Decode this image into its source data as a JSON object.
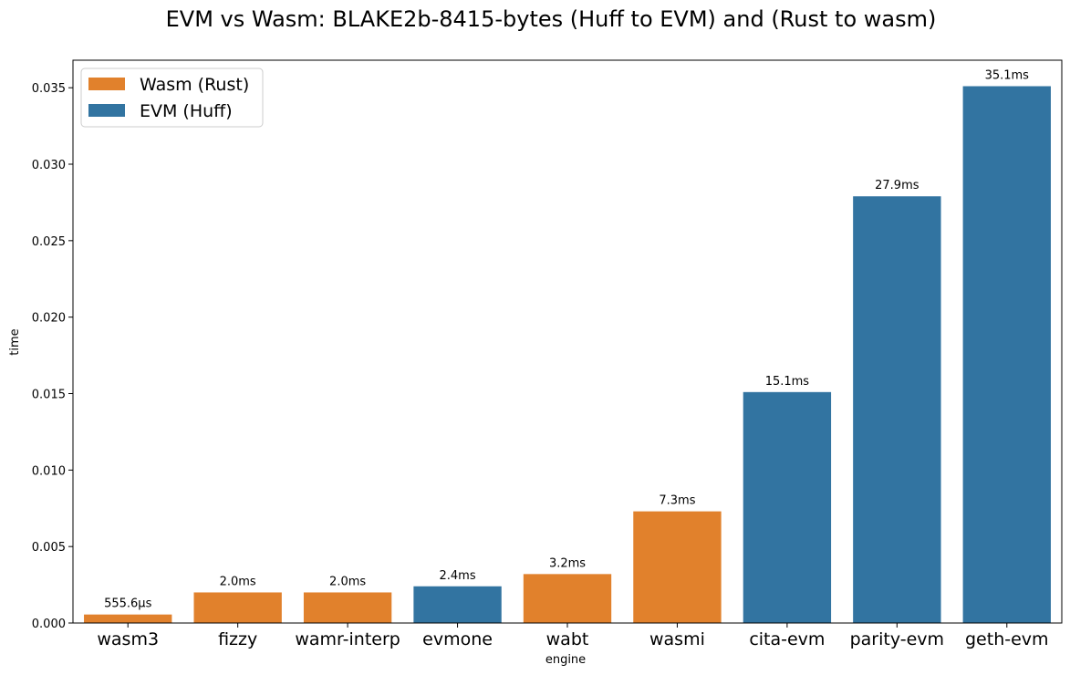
{
  "chart_data": {
    "type": "bar",
    "title": "EVM vs Wasm: BLAKE2b-8415-bytes (Huff to EVM) and (Rust to wasm)",
    "xlabel": "engine",
    "ylabel": "time",
    "ylim": [
      0,
      0.0368
    ],
    "yticks": [
      0.0,
      0.005,
      0.01,
      0.015,
      0.02,
      0.025,
      0.03,
      0.035
    ],
    "ytick_labels": [
      "0.000",
      "0.005",
      "0.010",
      "0.015",
      "0.020",
      "0.025",
      "0.030",
      "0.035"
    ],
    "categories": [
      "wasm3",
      "fizzy",
      "wamr-interp",
      "evmone",
      "wabt",
      "wasmi",
      "cita-evm",
      "parity-evm",
      "geth-evm"
    ],
    "values": [
      0.0005556,
      0.002,
      0.002,
      0.0024,
      0.0032,
      0.0073,
      0.0151,
      0.0279,
      0.0351
    ],
    "value_labels": [
      "555.6µs",
      "2.0ms",
      "2.0ms",
      "2.4ms",
      "3.2ms",
      "7.3ms",
      "15.1ms",
      "27.9ms",
      "35.1ms"
    ],
    "groups": [
      "Wasm (Rust)",
      "Wasm (Rust)",
      "Wasm (Rust)",
      "EVM (Huff)",
      "Wasm (Rust)",
      "Wasm (Rust)",
      "EVM (Huff)",
      "EVM (Huff)",
      "EVM (Huff)"
    ],
    "legend": {
      "placement": "top-left",
      "entries": [
        {
          "name": "Wasm (Rust)",
          "color": "#e1812c"
        },
        {
          "name": "EVM (Huff)",
          "color": "#3274a1"
        }
      ]
    },
    "grid": false
  }
}
